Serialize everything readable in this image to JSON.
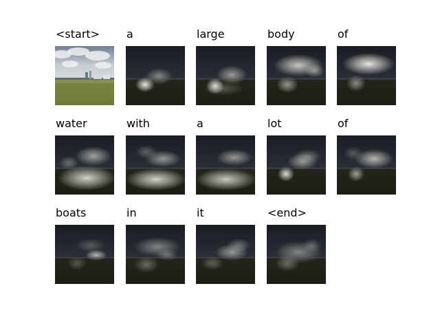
{
  "frames": [
    {
      "word": "<start>",
      "kind": "photo"
    },
    {
      "word": "a",
      "attention": "small blob lower-left",
      "kind": "attention"
    },
    {
      "word": "large",
      "attention": "blob lower-center",
      "kind": "attention"
    },
    {
      "word": "body",
      "attention": "wide upper glow",
      "kind": "attention"
    },
    {
      "word": "of",
      "attention": "bright wide upper glow",
      "kind": "attention"
    },
    {
      "word": "water",
      "attention": "bright lower band",
      "kind": "attention"
    },
    {
      "word": "with",
      "attention": "bright lower band",
      "kind": "attention"
    },
    {
      "word": "a",
      "attention": "bright lower band",
      "kind": "attention"
    },
    {
      "word": "lot",
      "attention": "blob center-left",
      "kind": "attention"
    },
    {
      "word": "of",
      "attention": "upper glow with lower blob",
      "kind": "attention"
    },
    {
      "word": "boats",
      "attention": "faint center glow",
      "kind": "attention"
    },
    {
      "word": "in",
      "attention": "faint spread",
      "kind": "attention"
    },
    {
      "word": "it",
      "attention": "faint center glow",
      "kind": "attention"
    },
    {
      "word": "<end>",
      "attention": "faint spread",
      "kind": "attention"
    }
  ]
}
